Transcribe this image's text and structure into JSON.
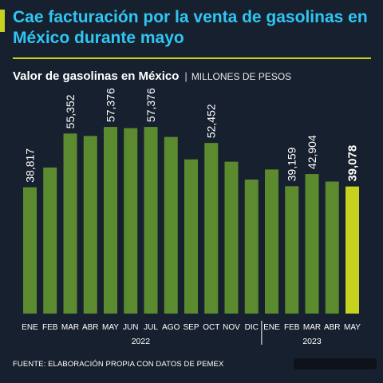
{
  "title": "Cae facturación por la venta de gasolinas en México durante mayo",
  "subtitle": {
    "main": "Valor de gasolinas en México",
    "separator": "|",
    "unit": "MILLONES DE PESOS"
  },
  "source": "FUENTE: ELABORACIÓN PROPIA CON DATOS DE PEMEX",
  "colors": {
    "background": "#17202e",
    "title": "#2fc6f3",
    "accent": "#c6d21f",
    "bar": "#5b8a2f",
    "highlight": "#c6d21f"
  },
  "chart_data": {
    "type": "bar",
    "title": "Valor de gasolinas en México",
    "ylabel": "MILLONES DE PESOS",
    "xlabel": "",
    "ylim": [
      0,
      65000
    ],
    "grid": false,
    "categories": [
      "ENE",
      "FEB",
      "MAR",
      "ABR",
      "MAY",
      "JUN",
      "JUL",
      "AGO",
      "SEP",
      "OCT",
      "NOV",
      "DIC",
      "ENE",
      "FEB",
      "MAR",
      "ABR",
      "MAY"
    ],
    "groups": [
      {
        "label": "2022",
        "start": 0,
        "end": 11
      },
      {
        "label": "2023",
        "start": 12,
        "end": 16
      }
    ],
    "values": [
      38817,
      44900,
      55352,
      54600,
      57376,
      57000,
      57376,
      54300,
      47400,
      52452,
      46700,
      41200,
      44300,
      39159,
      42904,
      40600,
      39078
    ],
    "labels": [
      "38,817",
      "",
      "55,352",
      "",
      "57,376",
      "",
      "57,376",
      "",
      "",
      "52,452",
      "",
      "",
      "",
      "39,159",
      "42,904",
      "",
      "39,078"
    ],
    "highlight_index": 16
  }
}
